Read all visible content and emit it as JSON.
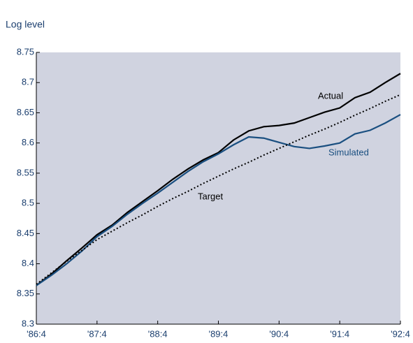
{
  "chart_data": {
    "type": "line",
    "y_label": "Log level",
    "categories": [
      "'86:4",
      null,
      null,
      null,
      "'87:4",
      null,
      null,
      null,
      "'88:4",
      null,
      null,
      null,
      "'89:4",
      null,
      null,
      null,
      "'90:4",
      null,
      null,
      null,
      "'91:4",
      null,
      null,
      null,
      "'92:4"
    ],
    "series": [
      {
        "name": "Actual",
        "color": "#000000",
        "style": "solid",
        "values": [
          8.364,
          8.383,
          8.405,
          8.426,
          8.448,
          8.464,
          8.485,
          8.503,
          8.521,
          8.54,
          8.557,
          8.572,
          8.584,
          8.605,
          8.62,
          8.627,
          8.629,
          8.633,
          8.642,
          8.651,
          8.658,
          8.675,
          8.684,
          8.7,
          8.715
        ]
      },
      {
        "name": "Simulated",
        "color": "#1a4f80",
        "style": "solid",
        "values": [
          8.364,
          8.381,
          8.4,
          8.421,
          8.445,
          8.462,
          8.482,
          8.5,
          8.517,
          8.535,
          8.553,
          8.569,
          8.582,
          8.597,
          8.61,
          8.608,
          8.601,
          8.594,
          8.591,
          8.595,
          8.6,
          8.615,
          8.621,
          8.633,
          8.647
        ]
      },
      {
        "name": "Target",
        "color": "#000000",
        "style": "dotted",
        "values": [
          8.366,
          8.385,
          8.404,
          8.422,
          8.44,
          8.454,
          8.468,
          8.481,
          8.495,
          8.508,
          8.52,
          8.533,
          8.545,
          8.557,
          8.568,
          8.58,
          8.591,
          8.602,
          8.613,
          8.623,
          8.634,
          8.646,
          8.657,
          8.669,
          8.68
        ]
      }
    ],
    "ylim": [
      8.3,
      8.75
    ],
    "yticks": [
      8.3,
      8.35,
      8.4,
      8.45,
      8.5,
      8.55,
      8.6,
      8.65,
      8.7,
      8.75
    ],
    "plot_background": "#d0d3e0"
  }
}
